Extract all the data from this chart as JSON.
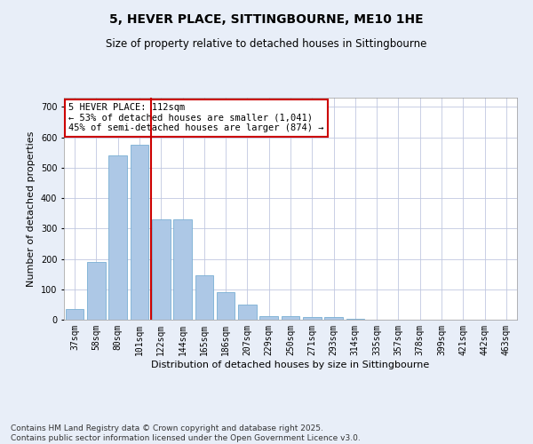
{
  "title": "5, HEVER PLACE, SITTINGBOURNE, ME10 1HE",
  "subtitle": "Size of property relative to detached houses in Sittingbourne",
  "xlabel": "Distribution of detached houses by size in Sittingbourne",
  "ylabel": "Number of detached properties",
  "categories": [
    "37sqm",
    "58sqm",
    "80sqm",
    "101sqm",
    "122sqm",
    "144sqm",
    "165sqm",
    "186sqm",
    "207sqm",
    "229sqm",
    "250sqm",
    "271sqm",
    "293sqm",
    "314sqm",
    "335sqm",
    "357sqm",
    "378sqm",
    "399sqm",
    "421sqm",
    "442sqm",
    "463sqm"
  ],
  "values": [
    35,
    190,
    540,
    575,
    330,
    330,
    145,
    90,
    50,
    13,
    12,
    10,
    8,
    2,
    0,
    0,
    0,
    0,
    0,
    0,
    0
  ],
  "bar_color": "#adc8e6",
  "bar_edge_color": "#7aafd4",
  "vline_color": "#cc0000",
  "annotation_text": "5 HEVER PLACE: 112sqm\n← 53% of detached houses are smaller (1,041)\n45% of semi-detached houses are larger (874) →",
  "annotation_box_color": "#cc0000",
  "ylim": [
    0,
    730
  ],
  "yticks": [
    0,
    100,
    200,
    300,
    400,
    500,
    600,
    700
  ],
  "footer": "Contains HM Land Registry data © Crown copyright and database right 2025.\nContains public sector information licensed under the Open Government Licence v3.0.",
  "bg_color": "#e8eef8",
  "plot_bg_color": "#ffffff",
  "grid_color": "#c0c8e0",
  "title_fontsize": 10,
  "subtitle_fontsize": 8.5,
  "xlabel_fontsize": 8,
  "ylabel_fontsize": 8,
  "tick_fontsize": 7,
  "footer_fontsize": 6.5,
  "annot_fontsize": 7.5
}
